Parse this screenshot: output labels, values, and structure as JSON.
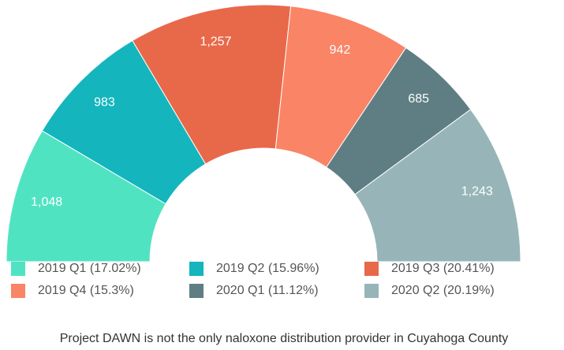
{
  "chart_data": {
    "type": "semi-donut",
    "categories": [
      "2019 Q1 (17.02%)",
      "2019 Q2 (15.96%)",
      "2019 Q3 (20.41%)",
      "2019 Q4 (15.3%)",
      "2020 Q1 (11.12%)",
      "2020 Q2 (20.19%)"
    ],
    "values": [
      1048,
      983,
      1257,
      942,
      685,
      1243
    ],
    "value_labels": [
      "1,048",
      "983",
      "1,257",
      "942",
      "685",
      "1,243"
    ],
    "colors": [
      "#50e3c2",
      "#14b5bd",
      "#e8694a",
      "#fa8466",
      "#5f7e83",
      "#97b5b8"
    ],
    "caption": "Project DAWN is not the only naloxone distribution provider in Cuyahoga County"
  }
}
